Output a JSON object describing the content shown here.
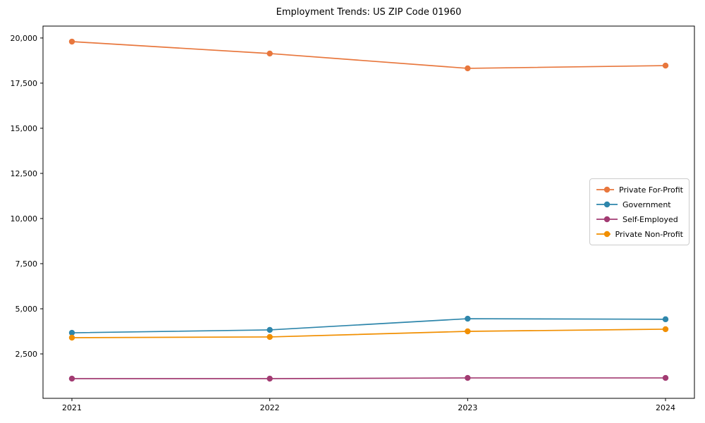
{
  "chart_data": {
    "type": "line",
    "title": "Employment Trends: US ZIP Code 01960",
    "xlabel": "",
    "ylabel": "",
    "categories": [
      "2021",
      "2022",
      "2023",
      "2024"
    ],
    "series": [
      {
        "name": "Private For-Profit",
        "color": "#e8773d",
        "values": [
          19800,
          19140,
          18320,
          18470
        ]
      },
      {
        "name": "Government",
        "color": "#2e86ab",
        "values": [
          3670,
          3830,
          4450,
          4420
        ]
      },
      {
        "name": "Self-Employed",
        "color": "#a23b72",
        "values": [
          1130,
          1130,
          1170,
          1170
        ]
      },
      {
        "name": "Private Non-Profit",
        "color": "#f18f01",
        "values": [
          3400,
          3440,
          3750,
          3870
        ]
      }
    ],
    "yticks": [
      2500,
      5000,
      7500,
      10000,
      12500,
      15000,
      17500,
      20000
    ],
    "ylim": [
      40,
      20660
    ],
    "grid": false,
    "legend_position": "center right",
    "axis_color": "#000000",
    "background_color": "#ffffff"
  }
}
